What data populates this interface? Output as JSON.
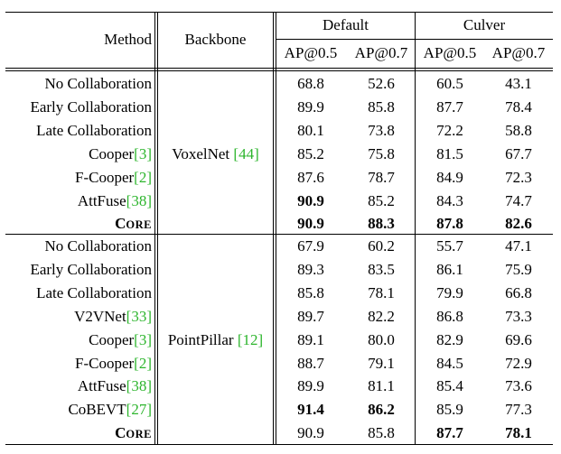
{
  "header": {
    "method": "Method",
    "backbone": "Backbone",
    "default": "Default",
    "culver": "Culver",
    "sub": [
      "AP@0.5",
      "AP@0.7",
      "AP@0.5",
      "AP@0.7"
    ]
  },
  "groups": [
    {
      "backbone": "VoxelNet ",
      "backbone_ref": "[44]",
      "rows": [
        {
          "method": "No Collaboration",
          "ref": "",
          "v": [
            "68.8",
            "52.6",
            "60.5",
            "43.1"
          ],
          "bold": [
            false,
            false,
            false,
            false
          ]
        },
        {
          "method": "Early Collaboration",
          "ref": "",
          "v": [
            "89.9",
            "85.8",
            "87.7",
            "78.4"
          ],
          "bold": [
            false,
            false,
            false,
            false
          ]
        },
        {
          "method": "Late Collaboration",
          "ref": "",
          "v": [
            "80.1",
            "73.8",
            "72.2",
            "58.8"
          ],
          "bold": [
            false,
            false,
            false,
            false
          ]
        },
        {
          "method": "Cooper",
          "ref": "[3]",
          "v": [
            "85.2",
            "75.8",
            "81.5",
            "67.7"
          ],
          "bold": [
            false,
            false,
            false,
            false
          ]
        },
        {
          "method": "F-Cooper",
          "ref": "[2]",
          "v": [
            "87.6",
            "78.7",
            "84.9",
            "72.3"
          ],
          "bold": [
            false,
            false,
            false,
            false
          ]
        },
        {
          "method": "AttFuse",
          "ref": "[38]",
          "v": [
            "90.9",
            "85.2",
            "84.3",
            "74.7"
          ],
          "bold": [
            true,
            false,
            false,
            false
          ]
        },
        {
          "method": "CORE",
          "ref": "",
          "core": true,
          "v": [
            "90.9",
            "88.3",
            "87.8",
            "82.6"
          ],
          "bold": [
            true,
            true,
            true,
            true
          ]
        }
      ]
    },
    {
      "backbone": "PointPillar ",
      "backbone_ref": "[12]",
      "rows": [
        {
          "method": "No Collaboration",
          "ref": "",
          "v": [
            "67.9",
            "60.2",
            "55.7",
            "47.1"
          ],
          "bold": [
            false,
            false,
            false,
            false
          ]
        },
        {
          "method": "Early Collaboration",
          "ref": "",
          "v": [
            "89.3",
            "83.5",
            "86.1",
            "75.9"
          ],
          "bold": [
            false,
            false,
            false,
            false
          ]
        },
        {
          "method": "Late Collaboration",
          "ref": "",
          "v": [
            "85.8",
            "78.1",
            "79.9",
            "66.8"
          ],
          "bold": [
            false,
            false,
            false,
            false
          ]
        },
        {
          "method": "V2VNet",
          "ref": "[33]",
          "v": [
            "89.7",
            "82.2",
            "86.8",
            "73.3"
          ],
          "bold": [
            false,
            false,
            false,
            false
          ]
        },
        {
          "method": "Cooper",
          "ref": "[3]",
          "v": [
            "89.1",
            "80.0",
            "82.9",
            "69.6"
          ],
          "bold": [
            false,
            false,
            false,
            false
          ]
        },
        {
          "method": "F-Cooper",
          "ref": "[2]",
          "v": [
            "88.7",
            "79.1",
            "84.5",
            "72.9"
          ],
          "bold": [
            false,
            false,
            false,
            false
          ]
        },
        {
          "method": "AttFuse",
          "ref": "[38]",
          "v": [
            "89.9",
            "81.1",
            "85.4",
            "73.6"
          ],
          "bold": [
            false,
            false,
            false,
            false
          ]
        },
        {
          "method": "CoBEVT",
          "ref": "[27]",
          "v": [
            "91.4",
            "86.2",
            "85.9",
            "77.3"
          ],
          "bold": [
            true,
            true,
            false,
            false
          ]
        },
        {
          "method": "CORE",
          "ref": "",
          "core": true,
          "v": [
            "90.9",
            "85.8",
            "87.7",
            "78.1"
          ],
          "bold": [
            false,
            false,
            true,
            true
          ]
        }
      ]
    }
  ]
}
